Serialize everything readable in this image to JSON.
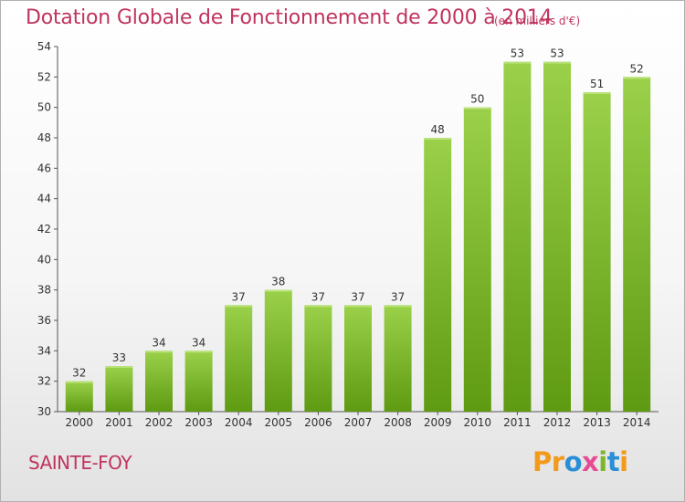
{
  "chart_data": {
    "type": "bar",
    "title": "Dotation Globale de Fonctionnement de 2000 à 2014",
    "unit": "(en milliers d'€)",
    "categories": [
      "2000",
      "2001",
      "2002",
      "2003",
      "2004",
      "2005",
      "2006",
      "2007",
      "2008",
      "2009",
      "2010",
      "2011",
      "2012",
      "2013",
      "2014"
    ],
    "values": [
      32,
      33,
      34,
      34,
      37,
      38,
      37,
      37,
      37,
      48,
      50,
      53,
      53,
      51,
      52
    ],
    "ylim": [
      30,
      54
    ],
    "yticks": [
      30,
      32,
      34,
      36,
      38,
      40,
      42,
      44,
      46,
      48,
      50,
      52,
      54
    ],
    "grid": false,
    "colors": {
      "bar_top": "#9bd14a",
      "bar_bottom": "#5e9a12",
      "title": "#c0345e"
    }
  },
  "commune": "SAINTE-FOY",
  "logo": {
    "text": "Proxiti",
    "letters": [
      {
        "ch": "P",
        "color": "#f39a1b"
      },
      {
        "ch": "r",
        "color": "#f39a1b"
      },
      {
        "ch": "o",
        "color": "#2a8fd6"
      },
      {
        "ch": "x",
        "color": "#e64b93"
      },
      {
        "ch": "i",
        "color": "#7ab82a"
      },
      {
        "ch": "t",
        "color": "#2a8fd6"
      },
      {
        "ch": "i",
        "color": "#f39a1b"
      }
    ]
  }
}
